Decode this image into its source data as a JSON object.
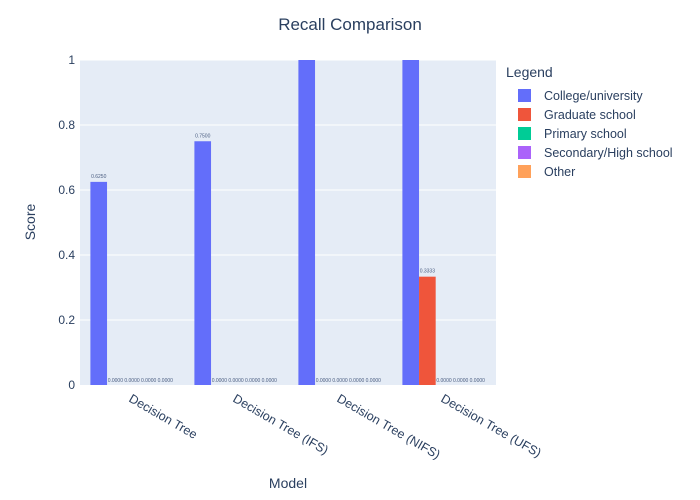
{
  "chart_data": {
    "type": "bar",
    "title": "Recall Comparison",
    "xlabel": "Model",
    "ylabel": "Score",
    "ylim": [
      0,
      1
    ],
    "yticks": [
      "0",
      "0.2",
      "0.4",
      "0.6",
      "0.8",
      "1"
    ],
    "categories": [
      "Decision Tree",
      "Decision Tree (IFS)",
      "Decision Tree (NIFS)",
      "Decision Tree (UFS)"
    ],
    "series": [
      {
        "name": "College/university",
        "color": "#636efa",
        "values": [
          0.625,
          0.75,
          1.0,
          1.0
        ],
        "labels": [
          "0.6250",
          "0.7500",
          "",
          ""
        ]
      },
      {
        "name": "Graduate school",
        "color": "#ef553b",
        "values": [
          0,
          0,
          0,
          0.3333
        ],
        "labels": [
          "0.0000",
          "0.0000",
          "0.0000",
          "0.3333"
        ]
      },
      {
        "name": "Primary school",
        "color": "#00cc96",
        "values": [
          0,
          0,
          0,
          0
        ],
        "labels": [
          "0.0000",
          "0.0000",
          "0.0000",
          "0.0000"
        ]
      },
      {
        "name": "Secondary/High school",
        "color": "#ab63fa",
        "values": [
          0,
          0,
          0,
          0
        ],
        "labels": [
          "0.0000",
          "0.0000",
          "0.0000",
          "0.0000"
        ]
      },
      {
        "name": "Other",
        "color": "#ffa15a",
        "values": [
          0,
          0,
          0,
          0
        ],
        "labels": [
          "0.0000",
          "0.0000",
          "0.0000",
          "0.0000"
        ]
      }
    ],
    "legend": {
      "title": "Legend",
      "position": "right"
    },
    "grid": true
  }
}
